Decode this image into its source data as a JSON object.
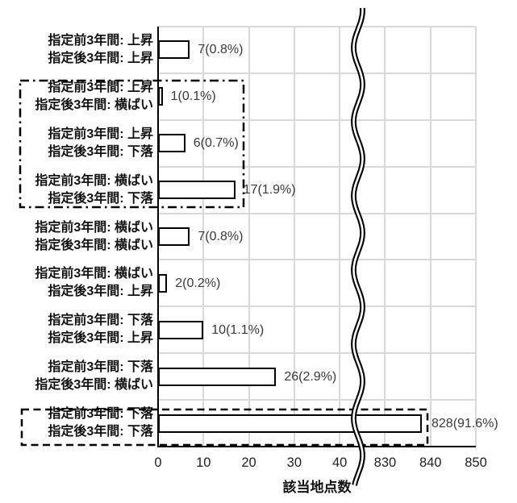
{
  "chart_data": {
    "type": "bar",
    "orientation": "horizontal",
    "title": "",
    "xlabel": "該当地点数",
    "ylabel": "",
    "grid": true,
    "categories": [
      {
        "line1": "指定前3年間: 上昇",
        "line2": "指定後3年間: 上昇"
      },
      {
        "line1": "指定前3年間: 上昇",
        "line2": "指定後3年間: 横ばい"
      },
      {
        "line1": "指定前3年間: 上昇",
        "line2": "指定後3年間: 下落"
      },
      {
        "line1": "指定前3年間: 横ばい",
        "line2": "指定後3年間: 下落"
      },
      {
        "line1": "指定前3年間: 横ばい",
        "line2": "指定後3年間: 横ばい"
      },
      {
        "line1": "指定前3年間: 横ばい",
        "line2": "指定後3年間: 上昇"
      },
      {
        "line1": "指定前3年間: 下落",
        "line2": "指定後3年間: 上昇"
      },
      {
        "line1": "指定前3年間: 下落",
        "line2": "指定後3年間: 横ばい"
      },
      {
        "line1": "指定前3年間: 下落",
        "line2": "指定後3年間: 下落"
      }
    ],
    "values": [
      7,
      1,
      6,
      17,
      7,
      2,
      10,
      26,
      828
    ],
    "value_labels": [
      "7(0.8%)",
      "1(0.1%)",
      "6(0.7%)",
      "17(1.9%)",
      "7(0.8%)",
      "2(0.2%)",
      "10(1.1%)",
      "26(2.9%)",
      "828(91.6%)"
    ],
    "percentages": [
      0.8,
      0.1,
      0.7,
      1.9,
      0.8,
      0.2,
      1.1,
      2.9,
      91.6
    ],
    "x_ticks": [
      "0",
      "10",
      "20",
      "30",
      "40",
      "830",
      "840",
      "850"
    ],
    "x_axis": {
      "segment1_range": [
        0,
        40
      ],
      "segment2_range": [
        830,
        850
      ],
      "tick_step": 10,
      "break_between": [
        "40",
        "830"
      ],
      "break_style": "double-wavy-line"
    },
    "annotations": [
      {
        "style": "dash-dot-box",
        "covers_categories": [
          1,
          2,
          3
        ]
      },
      {
        "style": "dashed-box",
        "covers_categories": [
          8
        ]
      }
    ],
    "colors": {
      "background": "#ffffff",
      "bar_fill": "#ffffff",
      "bar_border": "#000000",
      "gridline": "#d9d9d9",
      "axis": "#000000",
      "category_text": "#111111",
      "value_text": "#383838",
      "tick_text": "#1f1f1f"
    }
  }
}
